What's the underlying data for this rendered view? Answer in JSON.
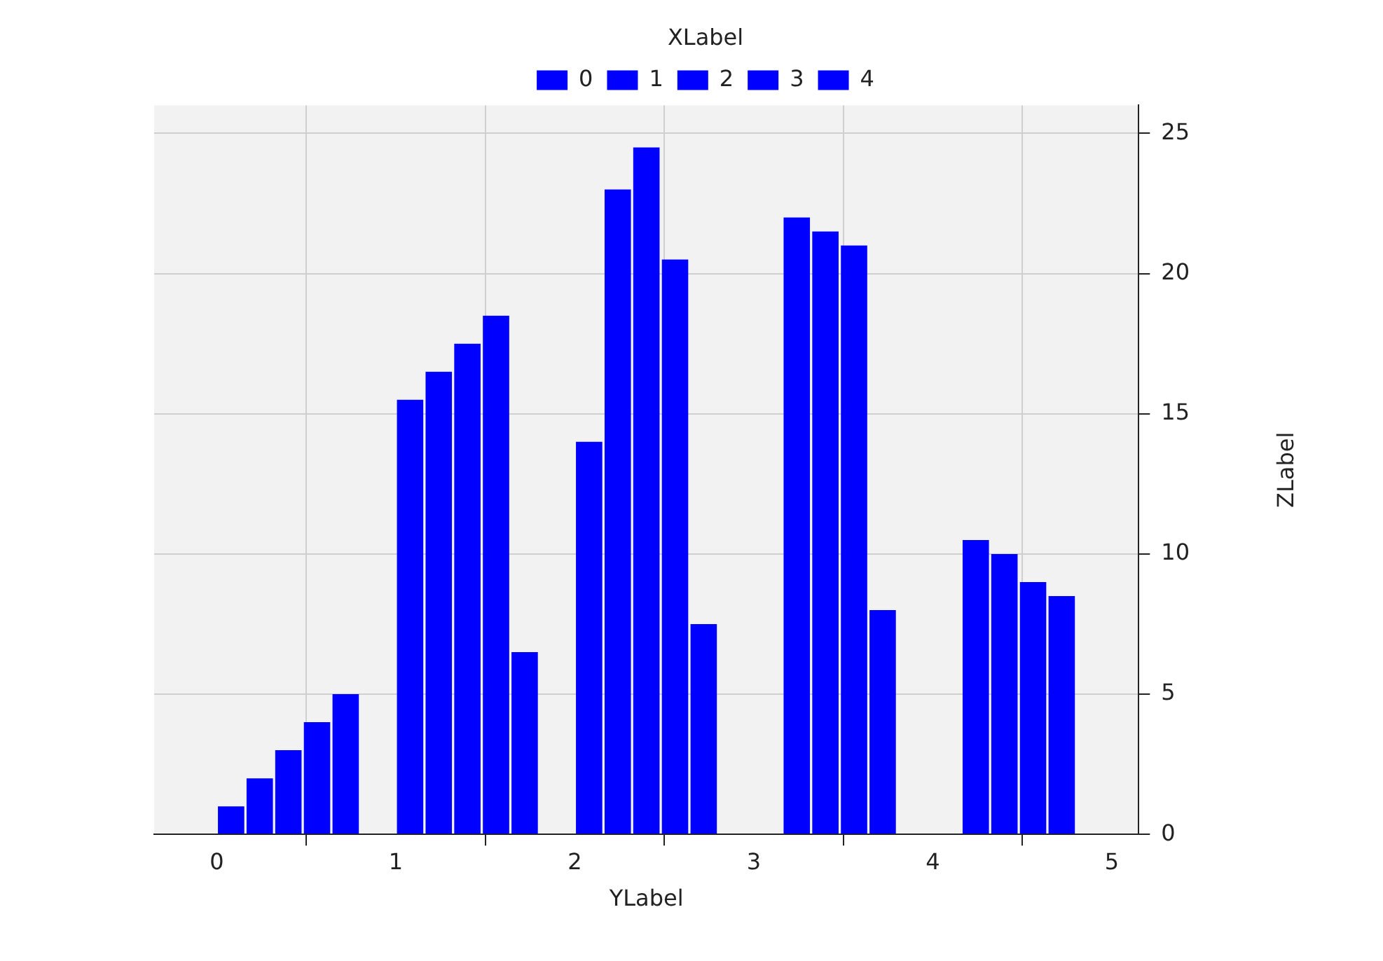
{
  "chart_data": {
    "type": "bar",
    "xlabel": "YLabel",
    "ylabel": "ZLabel",
    "legend_title": "XLabel",
    "x": [
      0.4,
      1.4,
      2.4,
      3.4,
      4.4
    ],
    "series": [
      {
        "name": "0",
        "color": "#0000ff",
        "values": [
          1,
          15.5,
          14,
          null,
          null
        ]
      },
      {
        "name": "1",
        "color": "#0000ff",
        "values": [
          2,
          16.5,
          23,
          22,
          10.5
        ]
      },
      {
        "name": "2",
        "color": "#0000ff",
        "values": [
          3,
          17.5,
          24.5,
          21.5,
          10
        ]
      },
      {
        "name": "3",
        "color": "#0000ff",
        "values": [
          4,
          18.5,
          20.5,
          21,
          9
        ]
      },
      {
        "name": "4",
        "color": "#0000ff",
        "values": [
          5,
          6.5,
          7.5,
          8,
          8.5
        ]
      }
    ],
    "xlim": [
      -0.35,
      5.15
    ],
    "xticks": [
      0,
      1,
      2,
      3,
      4,
      5
    ],
    "ylim": [
      0,
      26
    ],
    "yticks": [
      0,
      5,
      10,
      15,
      20,
      25
    ],
    "grid": true,
    "legend": "top"
  }
}
